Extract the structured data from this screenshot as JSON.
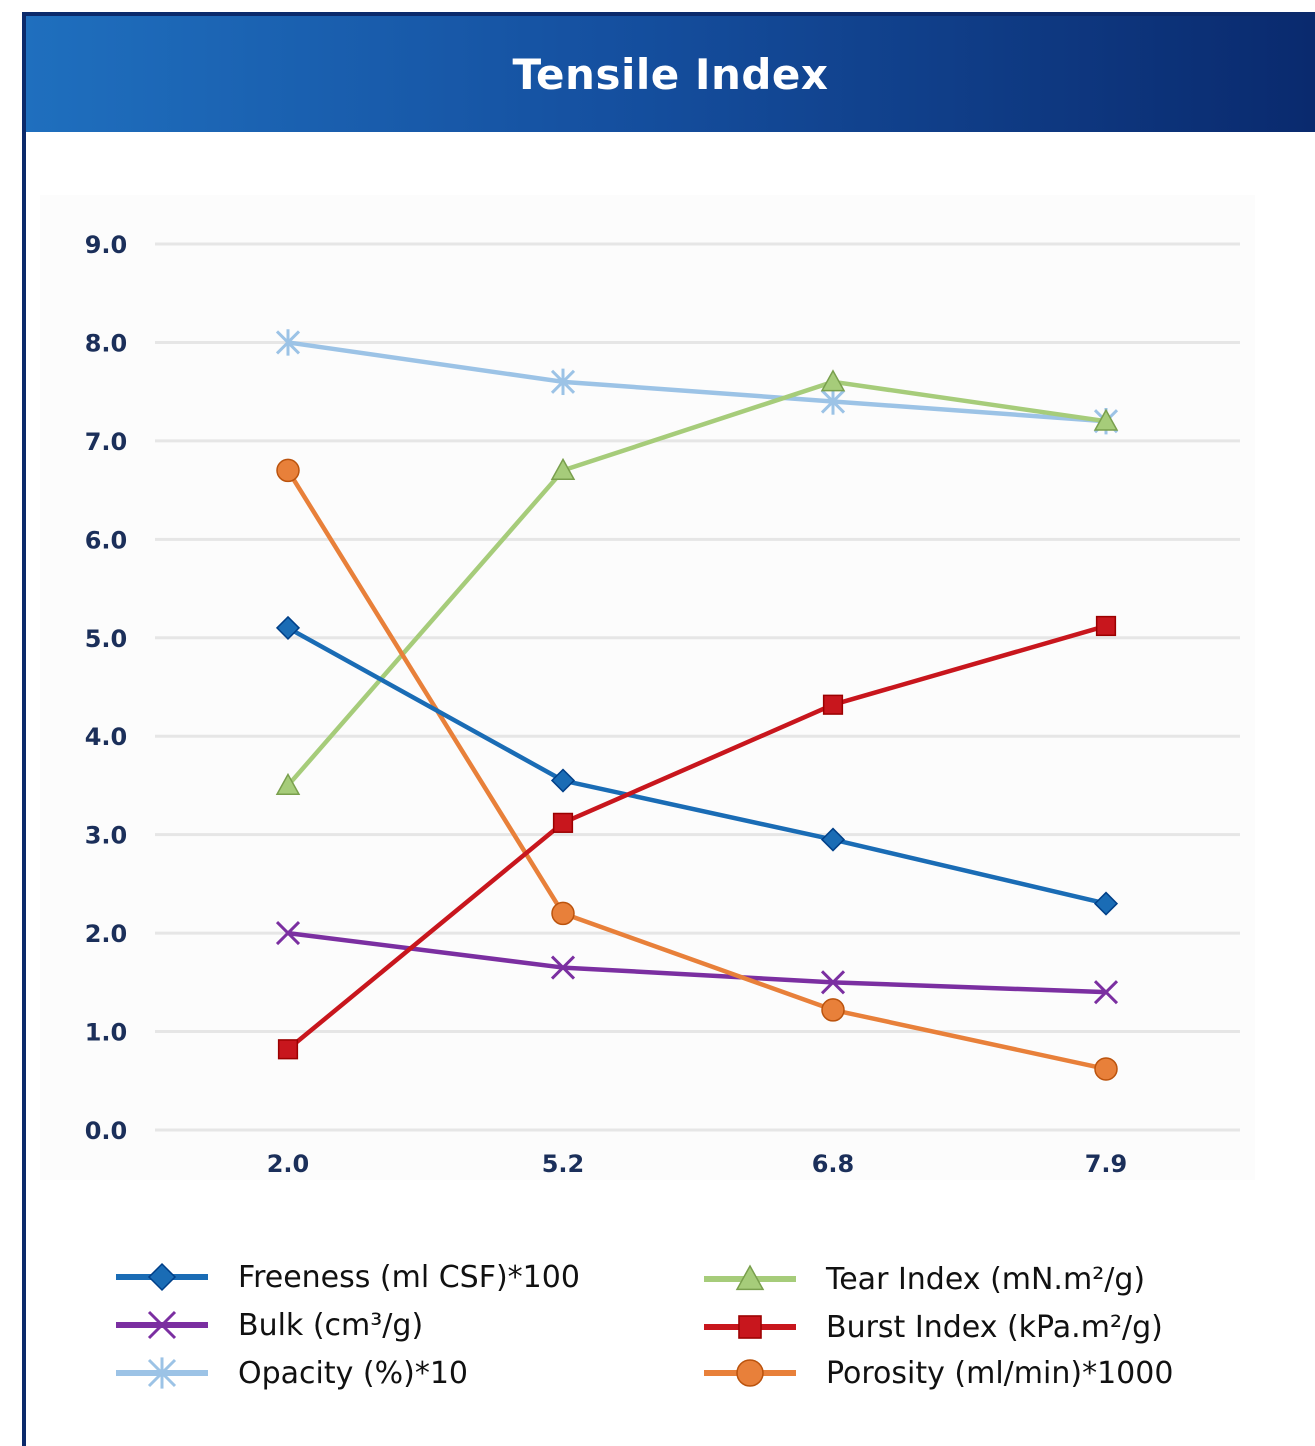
{
  "header": {
    "title": "Tensile Index"
  },
  "colors": {
    "header_start": "#1f6fbe",
    "header_end": "#0a2a6e",
    "grid": "#e6e6e6",
    "tick_text": "#1b2f5a"
  },
  "chart_data": {
    "type": "line",
    "title": "Tensile Index",
    "xlabel": "",
    "ylabel": "",
    "categories": [
      "2.0",
      "5.2",
      "6.8",
      "7.9"
    ],
    "ylim": [
      0,
      9
    ],
    "yticks": [
      "0.0",
      "1.0",
      "2.0",
      "3.0",
      "4.0",
      "5.0",
      "6.0",
      "7.0",
      "8.0",
      "9.0"
    ],
    "grid": true,
    "legend_position": "bottom",
    "series": [
      {
        "name": "Freeness (ml CSF)*100",
        "values": [
          5.1,
          3.55,
          2.95,
          2.3
        ],
        "color": "#1a6cb5",
        "marker": "diamond"
      },
      {
        "name": "Bulk (cm³/g)",
        "values": [
          2.0,
          1.65,
          1.5,
          1.4
        ],
        "color": "#7b2fa1",
        "marker": "x"
      },
      {
        "name": "Opacity (%)*10",
        "values": [
          8.0,
          7.6,
          7.4,
          7.2
        ],
        "color": "#9cc3e6",
        "marker": "asterisk"
      },
      {
        "name": "Tear Index (mN.m²/g)",
        "values": [
          3.5,
          6.7,
          7.6,
          7.2
        ],
        "color": "#a6cc7a",
        "marker": "triangle"
      },
      {
        "name": "Burst Index (kPa.m²/g)",
        "values": [
          0.82,
          3.12,
          4.32,
          5.12
        ],
        "color": "#c8161d",
        "marker": "square"
      },
      {
        "name": "Porosity (ml/min)*1000",
        "values": [
          6.7,
          2.2,
          1.22,
          0.62
        ],
        "color": "#e8803a",
        "marker": "circle"
      }
    ]
  }
}
